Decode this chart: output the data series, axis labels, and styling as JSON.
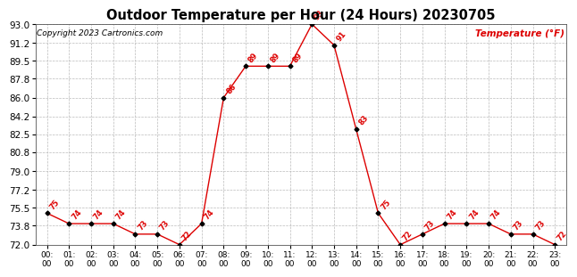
{
  "title": "Outdoor Temperature per Hour (24 Hours) 20230705",
  "copyright": "Copyright 2023 Cartronics.com",
  "ylabel": "Temperature (°F)",
  "hours": [
    0,
    1,
    2,
    3,
    4,
    5,
    6,
    7,
    8,
    9,
    10,
    11,
    12,
    13,
    14,
    15,
    16,
    17,
    18,
    19,
    20,
    21,
    22,
    23
  ],
  "hour_labels": [
    "00:00",
    "01:00",
    "02:00",
    "03:00",
    "04:00",
    "05:00",
    "06:00",
    "07:00",
    "08:00",
    "09:00",
    "10:00",
    "11:00",
    "12:00",
    "13:00",
    "14:00",
    "15:00",
    "16:00",
    "17:00",
    "18:00",
    "19:00",
    "20:00",
    "21:00",
    "22:00",
    "23:00"
  ],
  "temps": [
    75,
    74,
    74,
    74,
    73,
    73,
    72,
    74,
    86,
    89,
    89,
    89,
    93,
    91,
    83,
    75,
    72,
    73,
    74,
    74,
    74,
    73,
    73,
    72
  ],
  "line_color": "#dd0000",
  "marker_color": "#000000",
  "label_color": "#dd0000",
  "title_color": "#000000",
  "copyright_color": "#000000",
  "ylabel_color": "#dd0000",
  "bg_color": "#ffffff",
  "grid_color": "#bbbbbb",
  "ylim": [
    72.0,
    93.0
  ],
  "yticks": [
    72.0,
    73.8,
    75.5,
    77.2,
    79.0,
    80.8,
    82.5,
    84.2,
    86.0,
    87.8,
    89.5,
    91.2,
    93.0
  ]
}
